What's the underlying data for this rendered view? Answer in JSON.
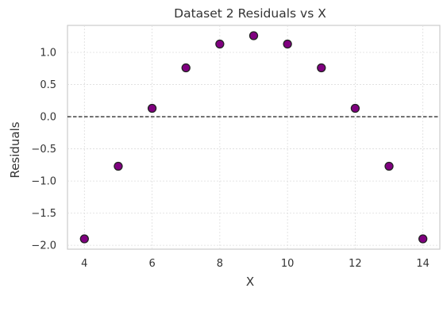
{
  "chart_data": {
    "type": "scatter",
    "title": "Dataset 2 Residuals vs X",
    "xlabel": "X",
    "ylabel": "Residuals",
    "x": [
      4,
      5,
      6,
      7,
      8,
      9,
      10,
      11,
      12,
      13,
      14
    ],
    "y": [
      -1.9,
      -0.77,
      0.13,
      0.76,
      1.13,
      1.26,
      1.13,
      0.76,
      0.13,
      -0.77,
      -1.9
    ],
    "xlim": [
      3.5,
      14.5
    ],
    "ylim": [
      -2.06,
      1.42
    ],
    "xticks": [
      4,
      6,
      8,
      10,
      12,
      14
    ],
    "yticks": [
      -2.0,
      -1.5,
      -1.0,
      -0.5,
      0.0,
      0.5,
      1.0
    ],
    "xtick_labels": [
      "4",
      "6",
      "8",
      "10",
      "12",
      "14"
    ],
    "ytick_labels": [
      "−2.0",
      "−1.5",
      "−1.0",
      "−0.5",
      "0.0",
      "0.5",
      "1.0"
    ],
    "reference_line": {
      "y": 0,
      "style": "dashed",
      "color": "#000000"
    },
    "grid": true,
    "marker_color": "#800080",
    "marker_edge_color": "#222222"
  }
}
